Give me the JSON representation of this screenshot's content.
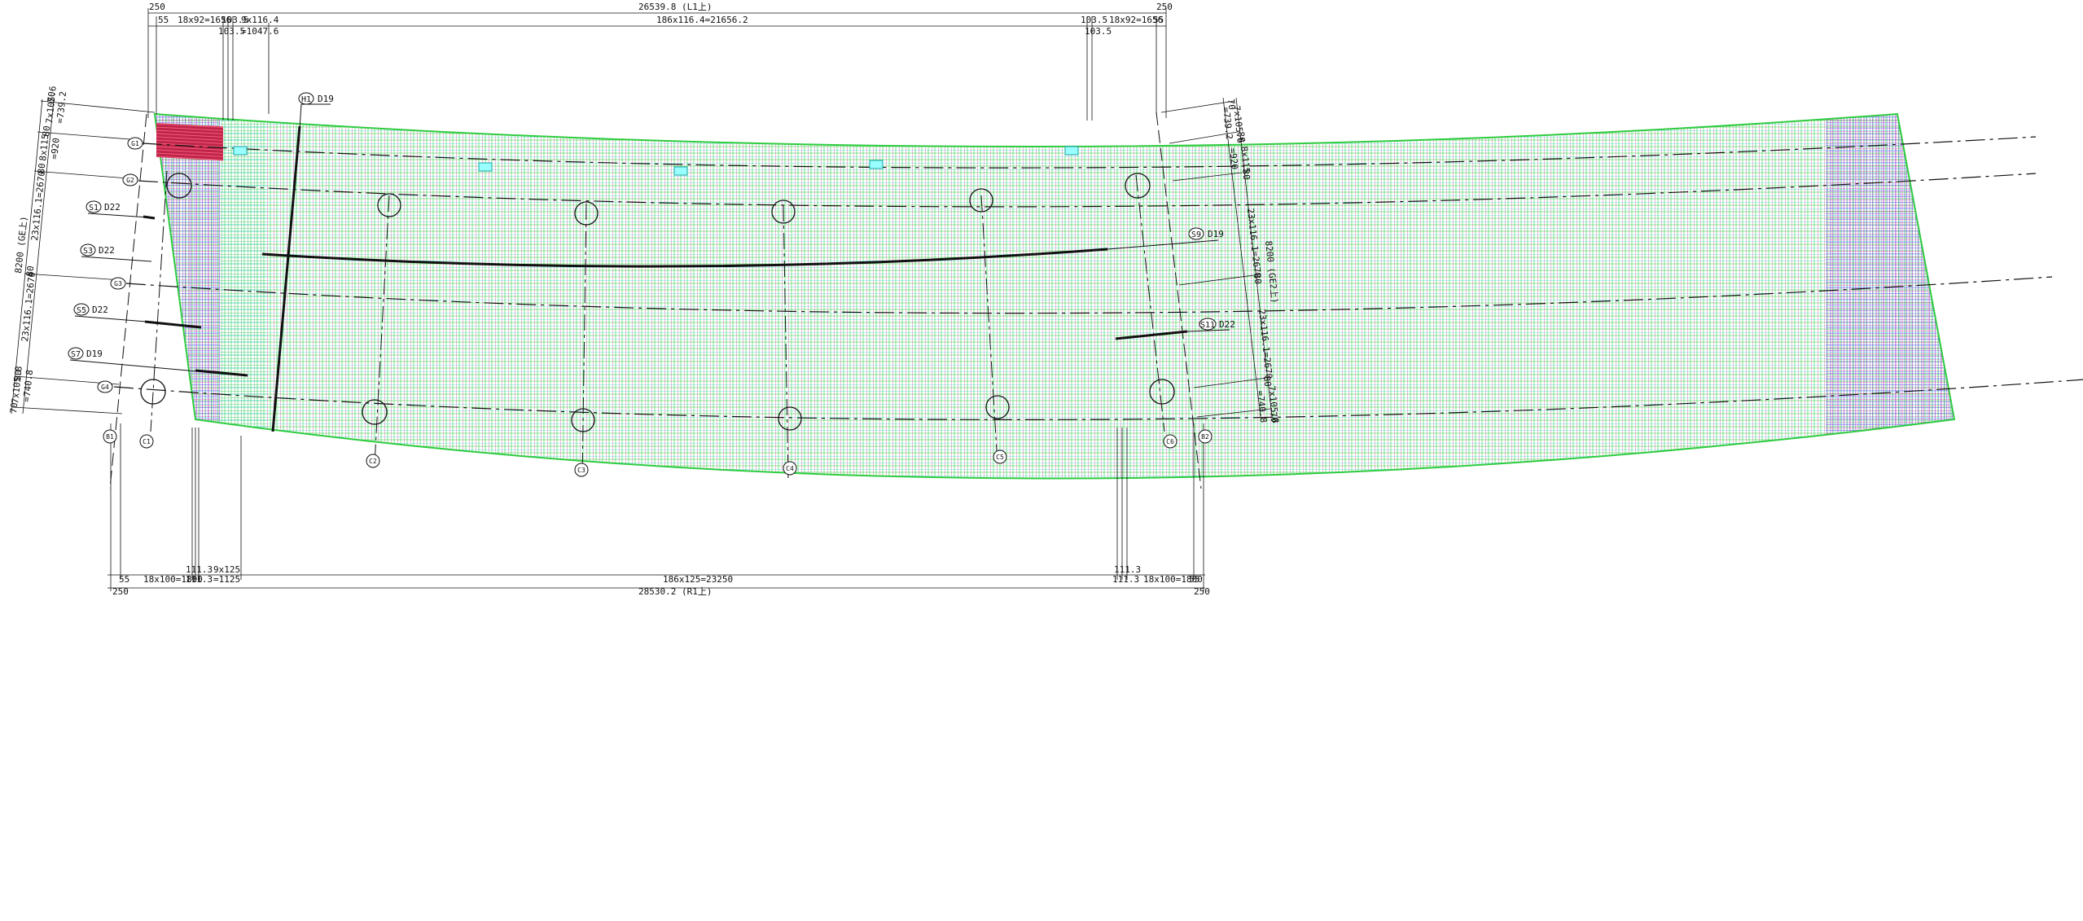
{
  "colors": {
    "green": "#2ecc40",
    "magenta": "#d6338a",
    "blue": "#2f5bd6",
    "cyan": "#19d5d5",
    "purple": "#9a5cf0",
    "red": "#e8384f",
    "black": "#111111"
  },
  "top_dims": {
    "total": "26539.8 (L1上)",
    "end_left": "250",
    "end_right": "250",
    "gap_left": "55",
    "gap_right": "55",
    "span_left": "18x92=1656",
    "span_right": "18x92=1656",
    "inner_left": "103.5",
    "inner_right": "103.5",
    "inner_left_b": "103.5",
    "inner_right_b": "103.5",
    "transition": "9x116.4",
    "transition_b": "=1047.6",
    "main": "186x116.4=21656.2"
  },
  "bottom_dims": {
    "total": "28530.2 (R1上)",
    "end_left": "250",
    "end_right": "250",
    "gap_left": "55",
    "gap_right": "55",
    "span_left": "18x100=1800",
    "span_right": "18x100=1800",
    "inner_left": "111.3",
    "inner_left_b": "111.3",
    "inner_right": "111.3",
    "inner_right_b": "111.3",
    "transition": "9x125",
    "transition_b": "=1125",
    "main": "186x125=23250"
  },
  "left_dims": {
    "a": "70",
    "b": "7x105.6",
    "c": "=739.2",
    "d": "80",
    "e": "8x115",
    "f": "=920",
    "g": "80",
    "h": "23x116.1=2670",
    "total": "8200 (GE上)",
    "i": "80",
    "j": "23x116.1=2670",
    "k": "80",
    "l": "7x105.8",
    "m": "=740.8",
    "n": "70"
  },
  "right_dims": {
    "a": "70",
    "b": "7x105.6",
    "c": "=739.2",
    "d": "80",
    "e": "8x115",
    "f": "=920",
    "g": "80",
    "h": "23x116.1=2670",
    "total": "8200 (GE2上)",
    "i": "80",
    "j": "23x116.1=2670",
    "k": "80",
    "l": "7x105.8",
    "m": "=740.8",
    "n": "70"
  },
  "rebar_labels": [
    {
      "tag": "H1",
      "dia": "D19"
    },
    {
      "tag": "S1",
      "dia": "D22"
    },
    {
      "tag": "S3",
      "dia": "D22"
    },
    {
      "tag": "S5",
      "dia": "D22"
    },
    {
      "tag": "S7",
      "dia": "D19"
    },
    {
      "tag": "S9",
      "dia": "D19"
    },
    {
      "tag": "S11",
      "dia": "D22"
    }
  ],
  "girder_tags": [
    "G1",
    "G2",
    "G3",
    "G4"
  ],
  "bottom_tags": [
    "B1",
    "C1",
    "C2",
    "C3",
    "C4",
    "C5",
    "C6",
    "B2"
  ]
}
